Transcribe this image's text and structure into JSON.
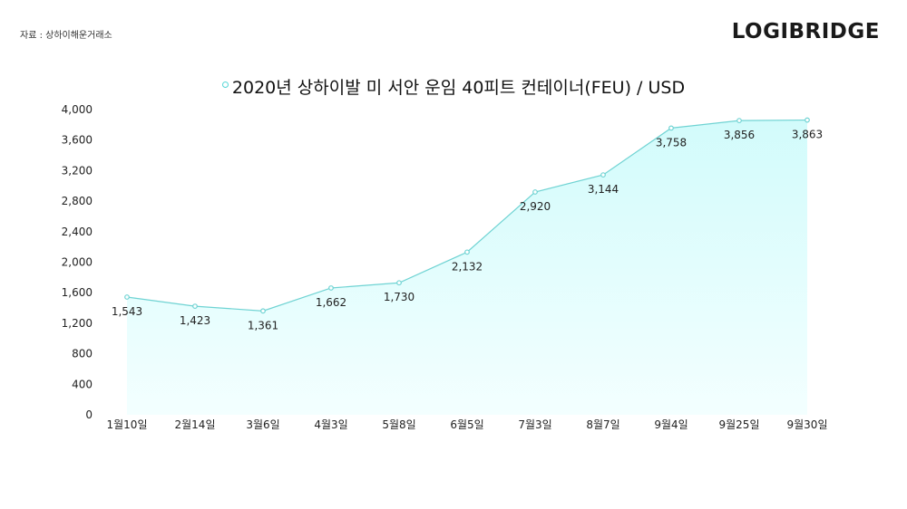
{
  "header": {
    "source": "자료 : 상하이해운거래소",
    "logo": "LOGIBRIDGE"
  },
  "colors": {
    "line": "#6fd3d3",
    "area_top": "#d2fbfb",
    "area_bottom": "#f3ffff",
    "marker_fill": "#ffffff"
  },
  "chart_data": {
    "type": "area",
    "title": "2020년 상하이발 미 서안 운임 40피트 컨테이너(FEU) / USD",
    "xlabel": "",
    "ylabel": "",
    "categories": [
      "1월10일",
      "2월14일",
      "3월6일",
      "4월3일",
      "5월8일",
      "6월5일",
      "7월3일",
      "8월7일",
      "9월4일",
      "9월25일",
      "9월30일"
    ],
    "values": [
      1543,
      1423,
      1361,
      1662,
      1730,
      2132,
      2920,
      3144,
      3758,
      3856,
      3863
    ],
    "value_labels": [
      "1,543",
      "1,423",
      "1,361",
      "1,662",
      "1,730",
      "2,132",
      "2,920",
      "3,144",
      "3,758",
      "3,856",
      "3,863"
    ],
    "ylim": [
      0,
      4000
    ],
    "yticks": [
      0,
      400,
      800,
      1200,
      1600,
      2000,
      2400,
      2800,
      3200,
      3600,
      4000
    ],
    "ytick_labels": [
      "0",
      "400",
      "800",
      "1,200",
      "1,600",
      "2,000",
      "2,400",
      "2,800",
      "3,200",
      "3,600",
      "4,000"
    ],
    "grid": false,
    "legend": "none"
  }
}
